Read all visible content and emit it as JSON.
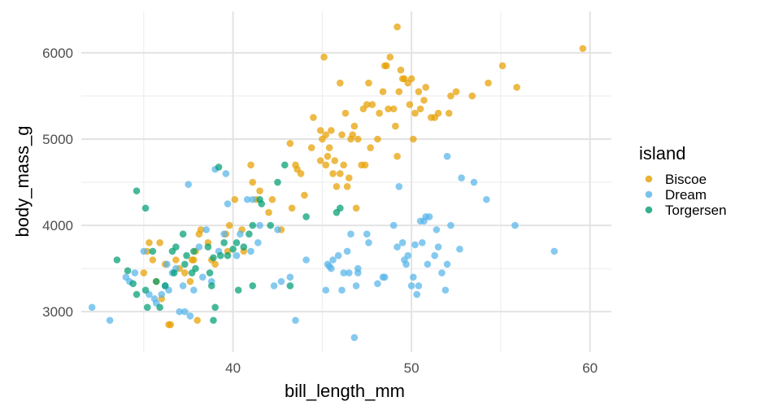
{
  "chart_data": {
    "type": "scatter",
    "xlabel": "bill_length_mm",
    "ylabel": "body_mass_g",
    "xlim": [
      31.5,
      61.2
    ],
    "ylim": [
      2530,
      6480
    ],
    "x_ticks": [
      40,
      50,
      60
    ],
    "y_ticks": [
      3000,
      4000,
      5000,
      6000
    ],
    "x_minor_ticks": [
      35,
      45,
      55
    ],
    "y_minor_ticks": [
      2500,
      3500,
      4500,
      5500
    ],
    "grid": true,
    "legend": {
      "title": "island",
      "position": "right"
    },
    "series": [
      {
        "name": "Biscoe",
        "color": "#E69F00",
        "points": [
          [
            35.0,
            3450
          ],
          [
            35.2,
            3700
          ],
          [
            35.3,
            3800
          ],
          [
            35.5,
            3600
          ],
          [
            35.7,
            3350
          ],
          [
            35.9,
            3800
          ],
          [
            36.0,
            3150
          ],
          [
            36.2,
            3550
          ],
          [
            36.4,
            2850
          ],
          [
            36.5,
            2850
          ],
          [
            36.8,
            3600
          ],
          [
            37.0,
            3500
          ],
          [
            37.3,
            3450
          ],
          [
            37.6,
            3350
          ],
          [
            37.7,
            3600
          ],
          [
            37.8,
            3600
          ],
          [
            37.9,
            3700
          ],
          [
            38.0,
            2900
          ],
          [
            38.1,
            3900
          ],
          [
            38.2,
            3950
          ],
          [
            38.6,
            3800
          ],
          [
            38.8,
            3600
          ],
          [
            39.0,
            3550
          ],
          [
            39.6,
            3900
          ],
          [
            39.7,
            3700
          ],
          [
            39.8,
            4000
          ],
          [
            40.1,
            4300
          ],
          [
            40.5,
            3950
          ],
          [
            40.6,
            3700
          ],
          [
            41.0,
            4700
          ],
          [
            41.1,
            4500
          ],
          [
            41.3,
            4300
          ],
          [
            41.5,
            4400
          ],
          [
            42.0,
            4150
          ],
          [
            42.2,
            4300
          ],
          [
            42.7,
            3950
          ],
          [
            43.2,
            4950
          ],
          [
            43.3,
            4200
          ],
          [
            43.5,
            4700
          ],
          [
            43.8,
            4600
          ],
          [
            44.0,
            4350
          ],
          [
            44.4,
            4900
          ],
          [
            44.5,
            5250
          ],
          [
            44.9,
            4750
          ],
          [
            45.0,
            5000
          ],
          [
            45.1,
            5950
          ],
          [
            45.2,
            5050
          ],
          [
            45.3,
            4800
          ],
          [
            45.4,
            4900
          ],
          [
            45.5,
            5100
          ],
          [
            45.6,
            4600
          ],
          [
            45.7,
            4750
          ],
          [
            45.8,
            4450
          ],
          [
            46.0,
            4600
          ],
          [
            46.1,
            5050
          ],
          [
            46.2,
            4700
          ],
          [
            46.3,
            5300
          ],
          [
            46.4,
            4450
          ],
          [
            46.5,
            4550
          ],
          [
            46.6,
            5000
          ],
          [
            46.7,
            5050
          ],
          [
            46.8,
            5150
          ],
          [
            46.9,
            4200
          ],
          [
            47.0,
            5000
          ],
          [
            47.2,
            4700
          ],
          [
            47.4,
            4700
          ],
          [
            47.5,
            5400
          ],
          [
            47.6,
            5650
          ],
          [
            47.7,
            4900
          ],
          [
            47.8,
            5400
          ],
          [
            48.1,
            5000
          ],
          [
            48.2,
            5300
          ],
          [
            48.4,
            5550
          ],
          [
            48.5,
            5850
          ],
          [
            48.6,
            5850
          ],
          [
            48.7,
            5350
          ],
          [
            49.0,
            5350
          ],
          [
            49.1,
            5150
          ],
          [
            49.2,
            4800
          ],
          [
            49.3,
            5550
          ],
          [
            49.4,
            5800
          ],
          [
            49.5,
            5700
          ],
          [
            49.6,
            5700
          ],
          [
            49.8,
            5650
          ],
          [
            49.9,
            5400
          ],
          [
            50.0,
            5700
          ],
          [
            50.1,
            5000
          ],
          [
            50.2,
            5300
          ],
          [
            50.4,
            5550
          ],
          [
            50.5,
            5350
          ],
          [
            50.7,
            5450
          ],
          [
            50.8,
            5600
          ],
          [
            51.1,
            5250
          ],
          [
            51.3,
            5250
          ],
          [
            51.5,
            5300
          ],
          [
            52.1,
            5300
          ],
          [
            52.2,
            5500
          ],
          [
            52.5,
            5550
          ],
          [
            53.4,
            5500
          ],
          [
            54.3,
            5650
          ],
          [
            55.1,
            5850
          ],
          [
            55.9,
            5600
          ],
          [
            59.6,
            6050
          ],
          [
            49.2,
            6300
          ],
          [
            48.8,
            5950
          ],
          [
            47.3,
            5350
          ],
          [
            46.0,
            5650
          ],
          [
            45.2,
            4700
          ],
          [
            44.9,
            5100
          ],
          [
            43.6,
            4650
          ]
        ]
      },
      {
        "name": "Dream",
        "color": "#56B4E9",
        "points": [
          [
            32.1,
            3050
          ],
          [
            33.1,
            2900
          ],
          [
            34.0,
            3400
          ],
          [
            34.2,
            3350
          ],
          [
            34.5,
            3450
          ],
          [
            35.0,
            3700
          ],
          [
            35.3,
            3200
          ],
          [
            35.6,
            3150
          ],
          [
            35.7,
            3100
          ],
          [
            36.0,
            3200
          ],
          [
            36.2,
            3300
          ],
          [
            36.3,
            3550
          ],
          [
            36.4,
            3250
          ],
          [
            36.6,
            3450
          ],
          [
            36.8,
            3500
          ],
          [
            37.0,
            3000
          ],
          [
            37.2,
            3300
          ],
          [
            37.3,
            3000
          ],
          [
            37.5,
            4475
          ],
          [
            37.6,
            2950
          ],
          [
            37.8,
            3250
          ],
          [
            38.1,
            3750
          ],
          [
            38.3,
            3400
          ],
          [
            38.5,
            3950
          ],
          [
            38.8,
            3350
          ],
          [
            39.0,
            4650
          ],
          [
            39.2,
            3700
          ],
          [
            39.5,
            3900
          ],
          [
            39.6,
            4600
          ],
          [
            39.7,
            4250
          ],
          [
            40.2,
            3650
          ],
          [
            40.4,
            3900
          ],
          [
            40.8,
            4300
          ],
          [
            41.0,
            3700
          ],
          [
            41.1,
            4300
          ],
          [
            41.4,
            3800
          ],
          [
            41.5,
            4000
          ],
          [
            42.3,
            3300
          ],
          [
            42.5,
            3950
          ],
          [
            42.7,
            3350
          ],
          [
            43.2,
            3400
          ],
          [
            43.5,
            2900
          ],
          [
            44.1,
            3600
          ],
          [
            45.2,
            3250
          ],
          [
            45.3,
            3550
          ],
          [
            45.4,
            3525
          ],
          [
            45.5,
            3500
          ],
          [
            45.6,
            3600
          ],
          [
            45.9,
            3650
          ],
          [
            46.1,
            3250
          ],
          [
            46.2,
            3450
          ],
          [
            46.4,
            3700
          ],
          [
            46.6,
            3900
          ],
          [
            46.9,
            3300
          ],
          [
            47.0,
            3450
          ],
          [
            47.5,
            3900
          ],
          [
            47.6,
            3800
          ],
          [
            48.1,
            3325
          ],
          [
            48.4,
            3400
          ],
          [
            48.5,
            3400
          ],
          [
            49.0,
            4000
          ],
          [
            49.2,
            3750
          ],
          [
            49.5,
            3800
          ],
          [
            49.6,
            3600
          ],
          [
            49.7,
            3550
          ],
          [
            49.8,
            3650
          ],
          [
            50.0,
            3300
          ],
          [
            50.1,
            3400
          ],
          [
            50.3,
            3200
          ],
          [
            50.4,
            3300
          ],
          [
            50.5,
            4050
          ],
          [
            50.6,
            3800
          ],
          [
            50.7,
            4050
          ],
          [
            50.8,
            4100
          ],
          [
            50.9,
            3550
          ],
          [
            51.0,
            4100
          ],
          [
            51.3,
            3650
          ],
          [
            51.4,
            3950
          ],
          [
            51.5,
            3750
          ],
          [
            51.7,
            3450
          ],
          [
            51.9,
            3250
          ],
          [
            52.0,
            4800
          ],
          [
            52.2,
            4000
          ],
          [
            52.7,
            3725
          ],
          [
            52.8,
            4550
          ],
          [
            53.5,
            4500
          ],
          [
            54.2,
            4300
          ],
          [
            55.8,
            4000
          ],
          [
            58.0,
            3700
          ],
          [
            46.8,
            2700
          ],
          [
            50.2,
            3775
          ],
          [
            49.3,
            4450
          ],
          [
            47.0,
            3500
          ],
          [
            46.5,
            3450
          ],
          [
            52.0,
            3550
          ]
        ]
      },
      {
        "name": "Torgersen",
        "color": "#009E73",
        "points": [
          [
            33.5,
            3600
          ],
          [
            34.1,
            3475
          ],
          [
            34.4,
            3325
          ],
          [
            34.6,
            3200
          ],
          [
            34.6,
            4400
          ],
          [
            35.1,
            4200
          ],
          [
            35.2,
            3050
          ],
          [
            35.5,
            3700
          ],
          [
            35.7,
            3350
          ],
          [
            35.9,
            3050
          ],
          [
            36.2,
            3300
          ],
          [
            36.6,
            3700
          ],
          [
            36.7,
            3450
          ],
          [
            37.2,
            3900
          ],
          [
            37.3,
            3550
          ],
          [
            37.7,
            3450
          ],
          [
            37.8,
            3700
          ],
          [
            38.6,
            3750
          ],
          [
            38.7,
            3450
          ],
          [
            38.8,
            3300
          ],
          [
            38.9,
            3625
          ],
          [
            39.0,
            3050
          ],
          [
            39.2,
            4675
          ],
          [
            39.5,
            3800
          ],
          [
            39.7,
            3650
          ],
          [
            40.2,
            3800
          ],
          [
            40.3,
            3250
          ],
          [
            40.6,
            3750
          ],
          [
            40.9,
            3900
          ],
          [
            41.1,
            4000
          ],
          [
            41.5,
            4300
          ],
          [
            42.1,
            4000
          ],
          [
            42.5,
            4500
          ],
          [
            42.9,
            4700
          ],
          [
            44.1,
            4100
          ],
          [
            45.8,
            4150
          ],
          [
            46.0,
            4200
          ],
          [
            39.3,
            3650
          ],
          [
            38.9,
            2900
          ],
          [
            41.1,
            3300
          ],
          [
            36.8,
            3750
          ],
          [
            37.4,
            3650
          ],
          [
            41.6,
            4250
          ],
          [
            43.2,
            3300
          ],
          [
            35.1,
            3250
          ],
          [
            37.9,
            3500
          ],
          [
            40.0,
            3725
          ]
        ]
      }
    ]
  }
}
